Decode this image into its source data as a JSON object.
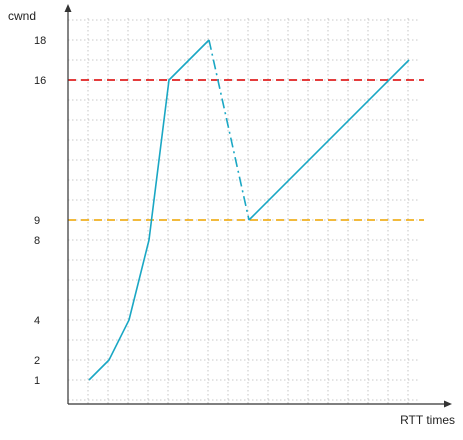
{
  "chart_data": {
    "type": "line",
    "title": "",
    "ylabel": "cwnd",
    "xlabel": "RTT times",
    "xlim": [
      0,
      17.5
    ],
    "ylim": [
      0,
      19
    ],
    "grid": true,
    "y_ticks": [
      1,
      2,
      4,
      8,
      9,
      16,
      18
    ],
    "series": [
      {
        "color": "#1aa7c4",
        "style": "solid",
        "points": [
          [
            1,
            1
          ],
          [
            2,
            2
          ],
          [
            3,
            4
          ],
          [
            4,
            8
          ],
          [
            5,
            16
          ],
          [
            7,
            18
          ]
        ]
      },
      {
        "color": "#1aa7c4",
        "style": "dashdot",
        "points": [
          [
            7,
            18
          ],
          [
            9,
            9
          ]
        ]
      },
      {
        "color": "#1aa7c4",
        "style": "solid",
        "points": [
          [
            9,
            9
          ],
          [
            17,
            17
          ]
        ]
      }
    ],
    "reference_lines": [
      {
        "y": 16,
        "color": "#e02020",
        "style": "dashed"
      },
      {
        "y": 9,
        "color": "#f0b020",
        "style": "dashed"
      }
    ]
  }
}
